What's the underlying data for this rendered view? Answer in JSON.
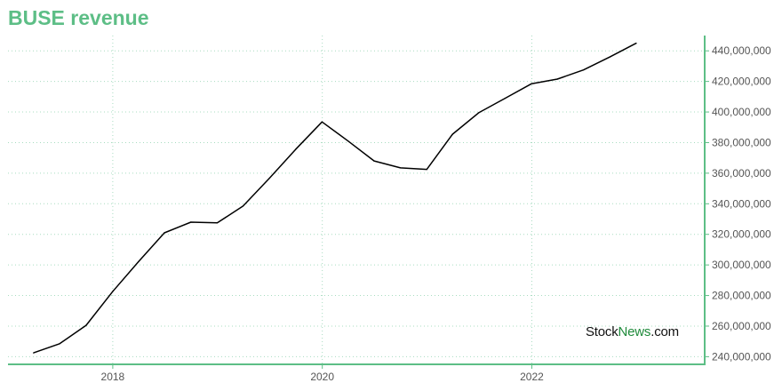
{
  "title": "BUSE revenue",
  "watermark": {
    "part1": "Stock",
    "part2": "News",
    "part3": ".com"
  },
  "colors": {
    "title": "#5dbe86",
    "axis": "#5dbe86",
    "grid": "#a8dcc0",
    "line": "#000000",
    "watermark_accent": "#1e8a3a"
  },
  "chart_data": {
    "type": "line",
    "title": "BUSE revenue",
    "xlabel": "",
    "ylabel": "",
    "xlim": [
      2017.0,
      2023.65
    ],
    "ylim": [
      235000000,
      450000000
    ],
    "xticks": [
      2018,
      2020,
      2022
    ],
    "xtick_labels": [
      "2018",
      "2020",
      "2022"
    ],
    "yticks": [
      240000000,
      260000000,
      280000000,
      300000000,
      320000000,
      340000000,
      360000000,
      380000000,
      400000000,
      420000000,
      440000000
    ],
    "ytick_labels": [
      "240,000,000",
      "260,000,000",
      "280,000,000",
      "300,000,000",
      "320,000,000",
      "340,000,000",
      "360,000,000",
      "380,000,000",
      "400,000,000",
      "420,000,000",
      "440,000,000"
    ],
    "grid": true,
    "y_axis_side": "right",
    "series": [
      {
        "x": [
          "2017-03-31",
          "2017-06-30",
          "2017-09-30",
          "2017-12-31",
          "2018-03-31",
          "2018-06-30",
          "2018-09-30",
          "2018-12-31",
          "2019-03-31",
          "2019-06-30",
          "2019-09-30",
          "2019-12-31",
          "2020-03-31",
          "2020-06-30",
          "2020-09-30",
          "2020-12-31",
          "2021-03-31",
          "2021-06-30",
          "2021-09-30",
          "2021-12-31",
          "2022-03-31",
          "2022-06-30",
          "2022-09-30",
          "2022-12-31"
        ],
        "values": [
          242500000,
          248500000,
          260500000,
          282500000,
          302000000,
          321000000,
          328000000,
          327500000,
          338500000,
          356500000,
          375500000,
          393500000,
          381000000,
          368000000,
          363500000,
          362500000,
          385500000,
          399500000,
          409000000,
          418500000,
          421500000,
          427500000,
          436000000,
          445000000
        ]
      }
    ]
  }
}
